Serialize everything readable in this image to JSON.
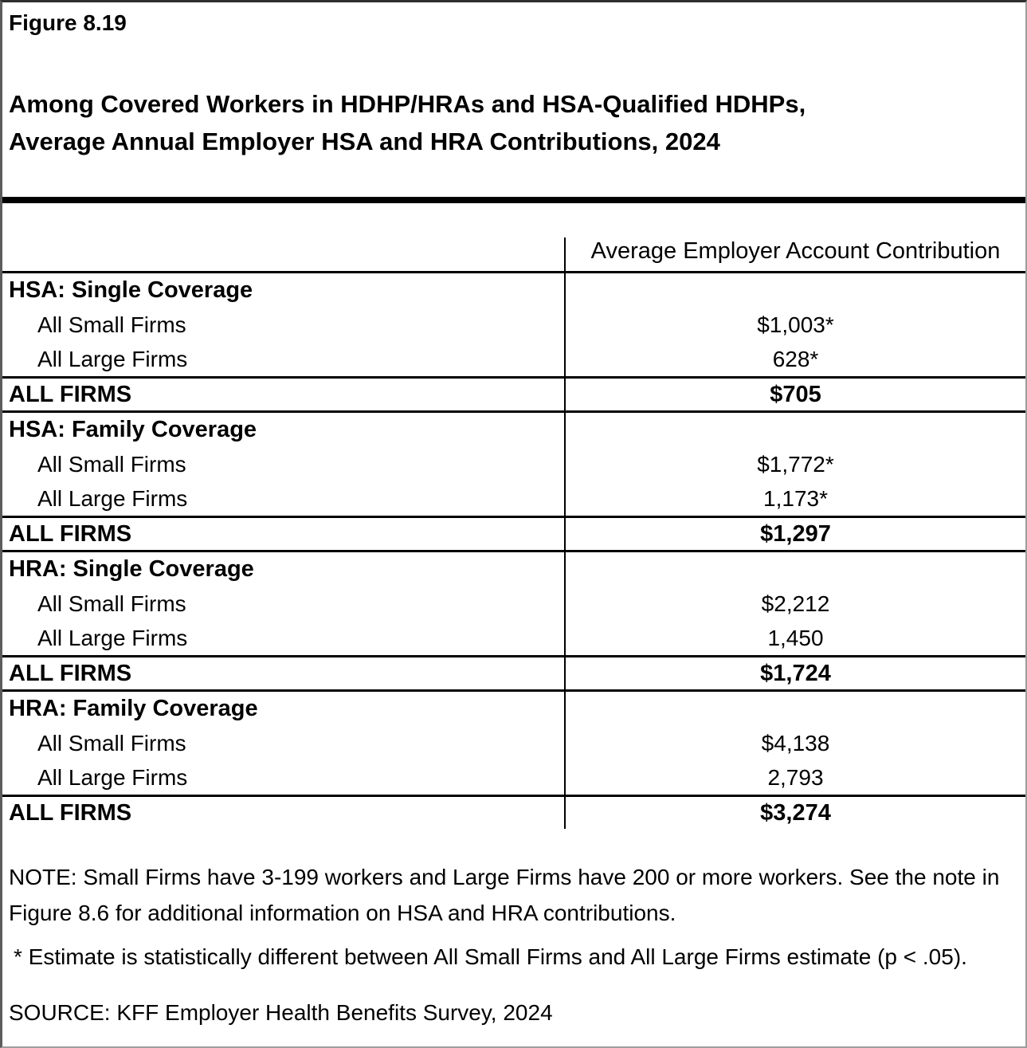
{
  "figure": {
    "label": "Figure 8.19",
    "title_line1": "Among Covered Workers in HDHP/HRAs and HSA-Qualified HDHPs,",
    "title_line2": "Average Annual Employer HSA and HRA Contributions, 2024"
  },
  "table": {
    "value_column_header": "Average Employer Account Contribution",
    "sections": [
      {
        "title": "HSA: Single Coverage",
        "rows": [
          {
            "label": "All Small Firms",
            "value": "$1,003*"
          },
          {
            "label": "All Large Firms",
            "value": "628*"
          }
        ],
        "total_label": "ALL FIRMS",
        "total_value": "$705"
      },
      {
        "title": "HSA: Family Coverage",
        "rows": [
          {
            "label": "All Small Firms",
            "value": "$1,772*"
          },
          {
            "label": "All Large Firms",
            "value": "1,173*"
          }
        ],
        "total_label": "ALL FIRMS",
        "total_value": "$1,297"
      },
      {
        "title": "HRA: Single Coverage",
        "rows": [
          {
            "label": "All Small Firms",
            "value": "$2,212"
          },
          {
            "label": "All Large Firms",
            "value": "1,450"
          }
        ],
        "total_label": "ALL FIRMS",
        "total_value": "$1,724"
      },
      {
        "title": "HRA: Family Coverage",
        "rows": [
          {
            "label": "All Small Firms",
            "value": "$4,138"
          },
          {
            "label": "All Large Firms",
            "value": "2,793"
          }
        ],
        "total_label": "ALL FIRMS",
        "total_value": "$3,274"
      }
    ]
  },
  "notes": {
    "note_line1": "NOTE: Small Firms have 3-199 workers and Large Firms have 200 or more workers. See the note in",
    "note_line2": "Figure 8.6 for additional information on HSA and HRA contributions.",
    "asterisk_note": "* Estimate is statistically different between All Small Firms and All Large Firms estimate (p < .05).",
    "source": "SOURCE: KFF Employer Health Benefits Survey, 2024"
  },
  "colors": {
    "text": "#000000",
    "rule": "#000000",
    "outer_border": "#9d9d9d"
  }
}
